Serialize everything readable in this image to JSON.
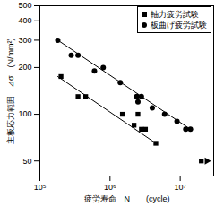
{
  "chart_data": {
    "type": "scatter",
    "x_label": "疲労寿命　N　　(cycle)",
    "y_label": "主板応力範囲　⊿σ　(N/mm²)",
    "log": true,
    "grid": false,
    "legend": "top-right",
    "xlim": [
      100000,
      30000000
    ],
    "ylim": [
      40,
      500
    ],
    "xticks": [
      {
        "value": 100000,
        "label": "10⁵"
      },
      {
        "value": 1000000,
        "label": "10⁶"
      },
      {
        "value": 10000000,
        "label": "10⁷"
      }
    ],
    "yticks": [
      50,
      100,
      200,
      300,
      400,
      500
    ],
    "series": [
      {
        "name": "軸力疲労試験",
        "color": "#000000",
        "marker": "square",
        "x": [
          200000,
          350000,
          450000,
          1500000,
          2200000,
          2500000,
          2800000,
          3200000,
          4500000,
          20000000
        ],
        "values": [
          175,
          130,
          130,
          100,
          85,
          100,
          80,
          80,
          65,
          50
        ],
        "fit_x": [
          180000,
          4500000
        ],
        "fit_values": [
          175,
          65
        ],
        "runout_x": [
          24000000
        ],
        "runout_values": [
          50
        ]
      },
      {
        "name": "板曲げ疲労試験",
        "color": "#000000",
        "marker": "circle",
        "x": [
          180000,
          280000,
          350000,
          600000,
          800000,
          1400000,
          2400000,
          2500000,
          2800000,
          4000000,
          6000000,
          9000000,
          12000000,
          14000000
        ],
        "values": [
          300,
          240,
          240,
          190,
          200,
          160,
          130,
          120,
          130,
          110,
          100,
          90,
          80,
          80
        ],
        "fit_x": [
          180000,
          14000000
        ],
        "fit_values": [
          300,
          80
        ]
      }
    ]
  }
}
